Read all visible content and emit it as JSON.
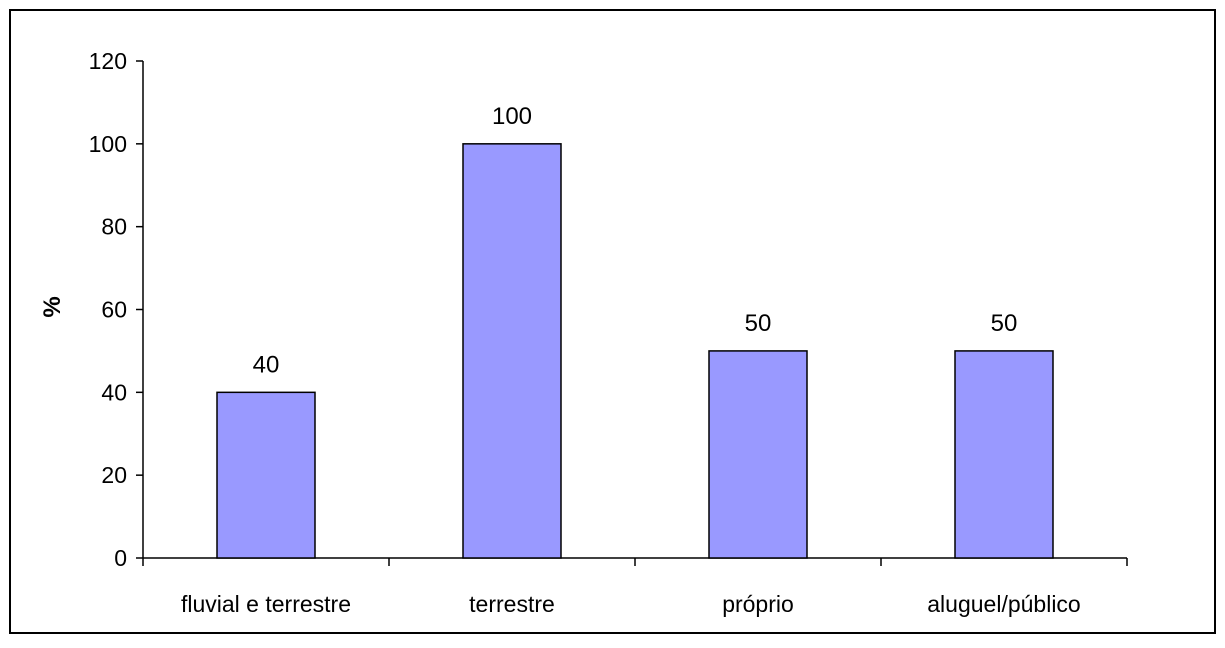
{
  "chart_data": {
    "type": "bar",
    "title": "",
    "xlabel": "",
    "ylabel": "%",
    "categories": [
      "fluvial e terrestre",
      "terrestre",
      "próprio",
      "aluguel/público"
    ],
    "values": [
      40,
      100,
      50,
      50
    ],
    "data_labels": [
      "40",
      "100",
      "50",
      "50"
    ],
    "ylim": [
      0,
      120
    ],
    "yticks": [
      0,
      20,
      40,
      60,
      80,
      100,
      120
    ],
    "grid": false,
    "legend": "none",
    "colors": {
      "bar_fill": "#9999ff",
      "bar_stroke": "#000000",
      "axis": "#000000",
      "frame": "#000000",
      "background": "#ffffff"
    }
  }
}
